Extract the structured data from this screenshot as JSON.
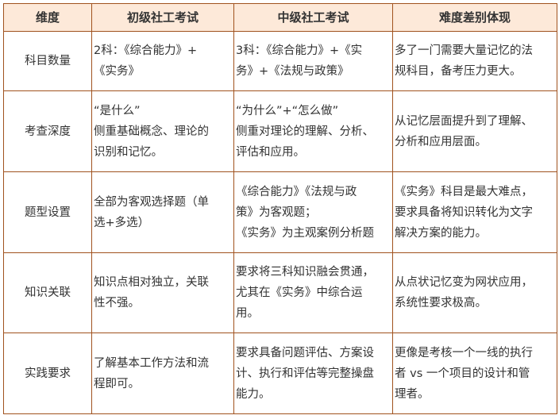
{
  "headers": [
    "维度",
    "初级社工考试",
    "中级社工考试",
    "难度差别体现"
  ],
  "rows": [
    {
      "dim": "科目数量",
      "junior": [
        "2科：《综合能力》+",
        "《实务》"
      ],
      "mid": [
        "3科：《综合能力》+《实",
        "务》+《法规与政策》"
      ],
      "diff": [
        "多了一门需要大量记忆的法",
        "规科目，备考压力更大。"
      ]
    },
    {
      "dim": "考查深度",
      "junior": [
        "“是什么”",
        "侧重基础概念、理论的",
        "识别和记忆。"
      ],
      "mid": [
        "“为什么”+“怎么做”",
        "侧重对理论的理解、分析、",
        "评估和应用。"
      ],
      "diff": [
        "从记忆层面提升到了理解、",
        "分析和应用层面。"
      ]
    },
    {
      "dim": "题型设置",
      "junior": [
        "全部为客观选择题（单",
        "选+多选）"
      ],
      "mid": [
        "《综合能力》《法规与政",
        "策》为客观题；",
        "《实务》为主观案例分析题"
      ],
      "diff": [
        "《实务》科目是最大难点，",
        "要求具备将知识转化为文字",
        "解决方案的能力。"
      ]
    },
    {
      "dim": "知识关联",
      "junior": [
        "知识点相对独立，关联",
        "性不强。"
      ],
      "mid": [
        "要求将三科知识融会贯通，",
        "尤其在《实务》中综合运",
        "用。"
      ],
      "diff": [
        "从点状记忆变为网状应用，",
        "系统性要求极高。"
      ]
    },
    {
      "dim": "实践要求",
      "junior": [
        "了解基本工作方法和流",
        "程即可。"
      ],
      "mid": [
        "要求具备问题评估、方案设",
        "计、执行和评估等完整操盘",
        "能力。"
      ],
      "diff": [
        "更像是考核一个一线的执行",
        "者 vs 一个项目的设计和管",
        "理者。"
      ]
    }
  ],
  "colors": {
    "border": "#a0521e",
    "header_bg": "#fde9d9"
  }
}
